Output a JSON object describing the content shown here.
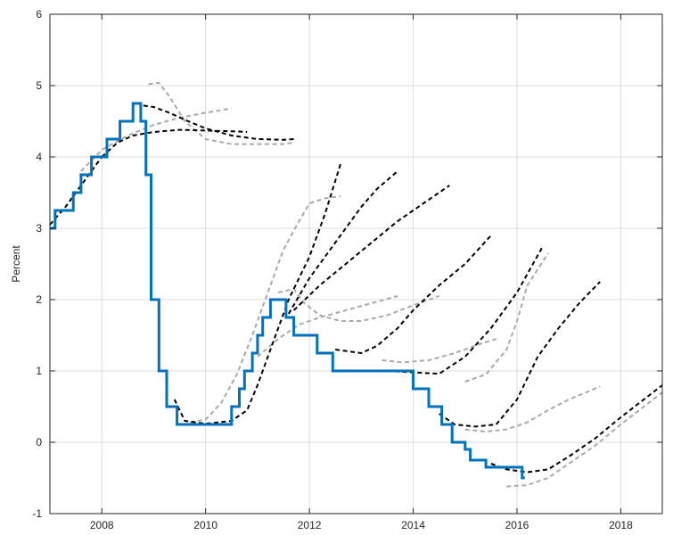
{
  "chart_data": {
    "type": "line",
    "title": "",
    "xlabel": "",
    "ylabel": "Percent",
    "xlim": [
      2007.0,
      2018.8
    ],
    "ylim": [
      -1,
      6
    ],
    "xticks": [
      2008,
      2010,
      2012,
      2014,
      2016,
      2018
    ],
    "yticks": [
      -1,
      0,
      1,
      2,
      3,
      4,
      5,
      6
    ],
    "xtick_labels": [
      "2008",
      "2010",
      "2012",
      "2014",
      "2016",
      "2018"
    ],
    "ytick_labels": [
      "-1",
      "0",
      "1",
      "2",
      "3",
      "4",
      "5",
      "6"
    ],
    "grid": true,
    "colors": {
      "actual": "#0072bd",
      "forecast_black": "#000000",
      "forecast_gray": "#aaaaaa"
    },
    "actual": {
      "style": "step",
      "x": [
        2007.0,
        2007.1,
        2007.45,
        2007.6,
        2007.8,
        2008.1,
        2008.35,
        2008.6,
        2008.75,
        2008.85,
        2008.95,
        2009.1,
        2009.25,
        2009.45,
        2009.6,
        2009.8,
        2010.0,
        2010.2,
        2010.5,
        2010.65,
        2010.75,
        2010.9,
        2011.0,
        2011.1,
        2011.25,
        2011.4,
        2011.55,
        2011.7,
        2011.8,
        2012.0,
        2012.15,
        2012.45,
        2012.75,
        2013.0,
        2013.5,
        2014.0,
        2014.3,
        2014.55,
        2014.75,
        2015.0,
        2015.1,
        2015.2,
        2015.4,
        2015.5,
        2016.1,
        2016.15
      ],
      "y": [
        3.0,
        3.25,
        3.5,
        3.75,
        4.0,
        4.25,
        4.5,
        4.75,
        4.5,
        3.75,
        2.0,
        1.0,
        0.5,
        0.25,
        0.25,
        0.25,
        0.25,
        0.25,
        0.5,
        0.75,
        1.0,
        1.25,
        1.5,
        1.75,
        2.0,
        2.0,
        1.75,
        1.5,
        1.5,
        1.5,
        1.25,
        1.0,
        1.0,
        1.0,
        1.0,
        0.75,
        0.5,
        0.25,
        0.0,
        -0.1,
        -0.25,
        -0.25,
        -0.35,
        -0.35,
        -0.5,
        -0.5
      ]
    },
    "forecasts_black": [
      {
        "x": [
          2007.0,
          2007.3,
          2007.6,
          2008.0
        ],
        "y": [
          3.05,
          3.3,
          3.6,
          4.0
        ]
      },
      {
        "x": [
          2008.0,
          2008.3,
          2008.6,
          2009.0,
          2009.5,
          2010.0,
          2010.5,
          2010.8
        ],
        "y": [
          4.0,
          4.2,
          4.3,
          4.35,
          4.38,
          4.37,
          4.36,
          4.35
        ]
      },
      {
        "x": [
          2008.8,
          2009.0,
          2009.3,
          2009.6,
          2010.0,
          2010.5,
          2011.0,
          2011.5,
          2011.7
        ],
        "y": [
          4.72,
          4.7,
          4.62,
          4.52,
          4.4,
          4.3,
          4.25,
          4.24,
          4.25
        ]
      },
      {
        "x": [
          2009.4,
          2009.6,
          2010.0,
          2010.5,
          2010.8,
          2011.0,
          2011.3,
          2011.6,
          2012.0,
          2012.3,
          2012.6
        ],
        "y": [
          0.6,
          0.3,
          0.26,
          0.3,
          0.45,
          0.8,
          1.4,
          2.0,
          2.6,
          3.2,
          3.9
        ]
      },
      {
        "x": [
          2011.6,
          2012.0,
          2012.5,
          2013.0,
          2013.3,
          2013.7
        ],
        "y": [
          1.8,
          2.3,
          2.8,
          3.3,
          3.55,
          3.8
        ]
      },
      {
        "x": [
          2011.7,
          2012.2,
          2012.7,
          2013.2,
          2013.7,
          2014.3,
          2014.7
        ],
        "y": [
          1.85,
          2.2,
          2.5,
          2.8,
          3.1,
          3.4,
          3.6
        ]
      },
      {
        "x": [
          2012.5,
          2013.0,
          2013.3,
          2013.7,
          2014.0,
          2014.5,
          2015.0,
          2015.5
        ],
        "y": [
          1.3,
          1.25,
          1.35,
          1.6,
          1.85,
          2.2,
          2.5,
          2.9
        ]
      },
      {
        "x": [
          2013.5,
          2014.0,
          2014.5,
          2015.0,
          2015.5,
          2016.0,
          2016.5
        ],
        "y": [
          1.0,
          0.98,
          0.96,
          1.2,
          1.6,
          2.1,
          2.75
        ]
      },
      {
        "x": [
          2014.5,
          2014.8,
          2015.2,
          2015.6,
          2016.0,
          2016.4,
          2016.8,
          2017.2,
          2017.6
        ],
        "y": [
          0.4,
          0.25,
          0.22,
          0.25,
          0.6,
          1.2,
          1.6,
          1.95,
          2.25
        ]
      },
      {
        "x": [
          2015.5,
          2015.8,
          2016.2,
          2016.6,
          2017.0,
          2017.5,
          2018.0,
          2018.8
        ],
        "y": [
          -0.3,
          -0.38,
          -0.42,
          -0.38,
          -0.2,
          0.05,
          0.35,
          0.8
        ]
      }
    ],
    "forecasts_gray": [
      {
        "x": [
          2007.6,
          2008.0,
          2008.5,
          2009.0,
          2009.5,
          2010.0,
          2010.5
        ],
        "y": [
          3.8,
          4.1,
          4.3,
          4.45,
          4.55,
          4.62,
          4.68
        ]
      },
      {
        "x": [
          2008.9,
          2009.1,
          2009.3,
          2009.6,
          2010.0,
          2010.5,
          2011.0,
          2011.5,
          2011.7
        ],
        "y": [
          5.02,
          5.04,
          4.85,
          4.5,
          4.25,
          4.18,
          4.18,
          4.18,
          4.2
        ]
      },
      {
        "x": [
          2009.7,
          2010.0,
          2010.3,
          2010.6,
          2010.9,
          2011.2,
          2011.5,
          2011.8,
          2012.0,
          2012.3,
          2012.6
        ],
        "y": [
          0.28,
          0.32,
          0.55,
          0.95,
          1.5,
          2.1,
          2.7,
          3.1,
          3.35,
          3.42,
          3.45
        ]
      },
      {
        "x": [
          2011.4,
          2011.7,
          2011.9,
          2012.2,
          2012.6,
          2013.0,
          2013.5,
          2014.0,
          2014.5
        ],
        "y": [
          2.1,
          2.15,
          1.95,
          1.78,
          1.7,
          1.7,
          1.78,
          1.92,
          2.05
        ]
      },
      {
        "x": [
          2011.0,
          2011.4,
          2011.8,
          2012.2,
          2012.7,
          2013.2,
          2013.7
        ],
        "y": [
          1.2,
          1.45,
          1.65,
          1.75,
          1.85,
          1.95,
          2.05
        ]
      },
      {
        "x": [
          2013.4,
          2013.8,
          2014.3,
          2014.8,
          2015.3,
          2015.6
        ],
        "y": [
          1.15,
          1.12,
          1.15,
          1.25,
          1.38,
          1.45
        ]
      },
      {
        "x": [
          2015.0,
          2015.4,
          2015.8,
          2016.2,
          2016.6,
          2017.0,
          2017.4,
          2017.6
        ],
        "y": [
          0.18,
          0.15,
          0.18,
          0.28,
          0.45,
          0.6,
          0.72,
          0.78
        ]
      },
      {
        "x": [
          2015.0,
          2015.4,
          2015.8,
          2016.0,
          2016.2,
          2016.6
        ],
        "y": [
          0.85,
          0.95,
          1.3,
          1.7,
          2.2,
          2.65
        ]
      },
      {
        "x": [
          2015.8,
          2016.2,
          2016.6,
          2017.0,
          2017.5,
          2018.0,
          2018.8
        ],
        "y": [
          -0.62,
          -0.6,
          -0.5,
          -0.3,
          -0.05,
          0.25,
          0.7
        ]
      }
    ]
  }
}
